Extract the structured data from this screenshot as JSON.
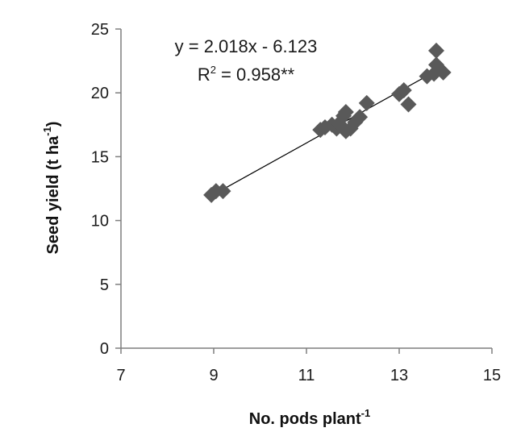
{
  "chart_data": {
    "type": "scatter",
    "title": "",
    "xlabel": "No. pods plant",
    "xlabel_sup": "-1",
    "ylabel": "Seed yield (t ha",
    "ylabel_sup": "-1",
    "ylabel_end": ")",
    "xlim": [
      7,
      15
    ],
    "ylim": [
      0,
      25
    ],
    "x_ticks": [
      "7",
      "9",
      "11",
      "13",
      "15"
    ],
    "y_ticks": [
      "0",
      "5",
      "10",
      "15",
      "20",
      "25"
    ],
    "grid": false,
    "legend": "none",
    "marker": "diamond",
    "marker_color": "#595959",
    "trendline_color": "#000000",
    "equation": "y = 2.018x - 6.123",
    "r2_prefix": "R",
    "r2_sup": "2",
    "r2_value": " = 0.958**",
    "trendline": {
      "slope": 2.018,
      "intercept": -6.123,
      "x_range": [
        9.0,
        13.9
      ]
    },
    "points": [
      {
        "x": 8.95,
        "y": 12.0
      },
      {
        "x": 9.05,
        "y": 12.3
      },
      {
        "x": 9.2,
        "y": 12.3
      },
      {
        "x": 11.3,
        "y": 17.1
      },
      {
        "x": 11.4,
        "y": 17.3
      },
      {
        "x": 11.55,
        "y": 17.5
      },
      {
        "x": 11.65,
        "y": 17.2
      },
      {
        "x": 11.7,
        "y": 17.6
      },
      {
        "x": 11.8,
        "y": 18.2
      },
      {
        "x": 11.85,
        "y": 18.5
      },
      {
        "x": 11.85,
        "y": 17.0
      },
      {
        "x": 11.95,
        "y": 17.2
      },
      {
        "x": 12.05,
        "y": 17.7
      },
      {
        "x": 12.15,
        "y": 18.1
      },
      {
        "x": 12.3,
        "y": 19.2
      },
      {
        "x": 13.0,
        "y": 19.9
      },
      {
        "x": 13.1,
        "y": 20.2
      },
      {
        "x": 13.2,
        "y": 19.1
      },
      {
        "x": 13.6,
        "y": 21.3
      },
      {
        "x": 13.75,
        "y": 21.5
      },
      {
        "x": 13.8,
        "y": 22.2
      },
      {
        "x": 13.8,
        "y": 23.3
      },
      {
        "x": 13.95,
        "y": 21.6
      }
    ]
  }
}
